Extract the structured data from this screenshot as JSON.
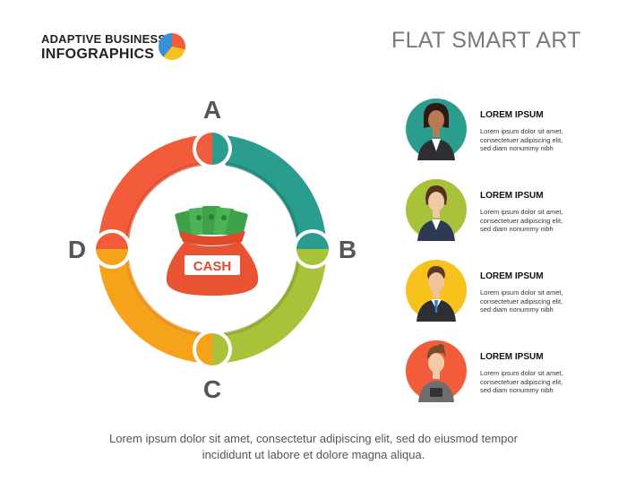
{
  "brand": {
    "line1": "ADAPTIVE BUSINESS",
    "line2": "INFOGRAPHICS"
  },
  "title": "FLAT SMART ART",
  "center": {
    "label": "CASH"
  },
  "cycle": {
    "labels": [
      {
        "key": "A",
        "text": "A"
      },
      {
        "key": "B",
        "text": "B"
      },
      {
        "key": "C",
        "text": "C"
      },
      {
        "key": "D",
        "text": "D"
      }
    ]
  },
  "people": [
    {
      "title": "LOREM IPSUM",
      "line1": "Lorem ipsum dolor sit amet,",
      "line2": "consectetuer adipiscing elit,",
      "line3": "sed diam nonummy nibh"
    },
    {
      "title": "LOREM IPSUM",
      "line1": "Lorem ipsum dolor sit amet,",
      "line2": "consectetuer adipiscing elit,",
      "line3": "sed diam nonummy nibh"
    },
    {
      "title": "LOREM IPSUM",
      "line1": "Lorem ipsum dolor sit amet,",
      "line2": "consectetuer adipiscing elit,",
      "line3": "sed diam nonummy nibh"
    },
    {
      "title": "LOREM IPSUM",
      "line1": "Lorem ipsum dolor sit amet,",
      "line2": "consectetuer adipiscing elit,",
      "line3": "sed diam nonummy nibh"
    }
  ],
  "footer": {
    "line1": "Lorem ipsum dolor sit amet, consectetur adipiscing elit, sed do eiusmod tempor",
    "line2": "incididunt ut labore et dolore magna aliqua."
  },
  "colors": {
    "teal": "#2a9d8f",
    "teal_dark": "#1f7f73",
    "green": "#a8c23a",
    "green_dark": "#86a12b",
    "orange": "#f7a21b",
    "orange_dark": "#e2891a",
    "red": "#f25c3b",
    "red_dark": "#d8482c",
    "text_dark": "#222222"
  },
  "icons": [
    "pie-chart-icon",
    "money-bag-icon",
    "businesswoman-icon",
    "businessman-icon"
  ]
}
